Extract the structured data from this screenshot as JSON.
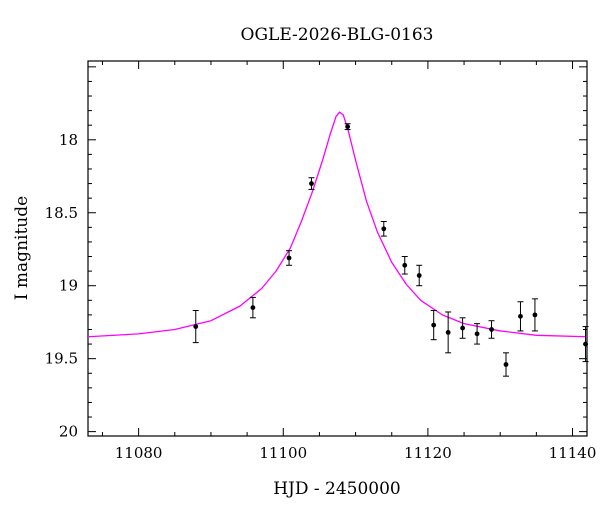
{
  "chart_data": {
    "type": "scatter",
    "title": "OGLE-2026-BLG-0163",
    "xlabel": "HJD - 2450000",
    "ylabel": "I magnitude",
    "xlim": [
      11073,
      11142
    ],
    "ylim": [
      20.03,
      17.46
    ],
    "y_inverted": true,
    "x_ticks": [
      11080,
      11100,
      11120,
      11140
    ],
    "x_tick_labels": [
      "11080",
      "11100",
      "11120",
      "11140"
    ],
    "y_ticks": [
      18,
      18.5,
      19,
      19.5,
      20
    ],
    "y_tick_labels": [
      "18",
      "18.5",
      "19",
      "19.5",
      "20"
    ],
    "grid": false,
    "series": [
      {
        "kind": "points_with_errorbars",
        "color": "#000000",
        "points": [
          {
            "x": 11087.9,
            "y": 19.28,
            "err": 0.11
          },
          {
            "x": 11095.8,
            "y": 19.15,
            "err": 0.07
          },
          {
            "x": 11100.8,
            "y": 18.81,
            "err": 0.05
          },
          {
            "x": 11103.9,
            "y": 18.3,
            "err": 0.04
          },
          {
            "x": 11108.9,
            "y": 17.91,
            "err": 0.02
          },
          {
            "x": 11113.9,
            "y": 18.61,
            "err": 0.05
          },
          {
            "x": 11116.8,
            "y": 18.86,
            "err": 0.06
          },
          {
            "x": 11118.8,
            "y": 18.93,
            "err": 0.07
          },
          {
            "x": 11120.8,
            "y": 19.27,
            "err": 0.1
          },
          {
            "x": 11122.8,
            "y": 19.32,
            "err": 0.14
          },
          {
            "x": 11124.8,
            "y": 19.29,
            "err": 0.07
          },
          {
            "x": 11126.8,
            "y": 19.33,
            "err": 0.07
          },
          {
            "x": 11128.8,
            "y": 19.3,
            "err": 0.06
          },
          {
            "x": 11130.8,
            "y": 19.54,
            "err": 0.08
          },
          {
            "x": 11132.8,
            "y": 19.21,
            "err": 0.1
          },
          {
            "x": 11134.8,
            "y": 19.2,
            "err": 0.11
          },
          {
            "x": 11141.8,
            "y": 19.4,
            "err": 0.12
          }
        ]
      },
      {
        "kind": "model_curve",
        "color": "#ff00ff",
        "x": [
          11073,
          11080,
          11085,
          11090,
          11094,
          11097,
          11099,
          11101,
          11102.5,
          11104,
          11105.5,
          11106.5,
          11107.3,
          11107.8,
          11108.3,
          11109,
          11110,
          11111.5,
          11113,
          11115,
          11117,
          11119,
          11122,
          11125,
          11130,
          11135,
          11142
        ],
        "y": [
          19.35,
          19.33,
          19.3,
          19.24,
          19.14,
          19.02,
          18.9,
          18.74,
          18.56,
          18.36,
          18.13,
          17.96,
          17.84,
          17.81,
          17.83,
          17.94,
          18.14,
          18.42,
          18.63,
          18.84,
          18.99,
          19.1,
          19.2,
          19.26,
          19.31,
          19.34,
          19.35
        ]
      }
    ]
  }
}
